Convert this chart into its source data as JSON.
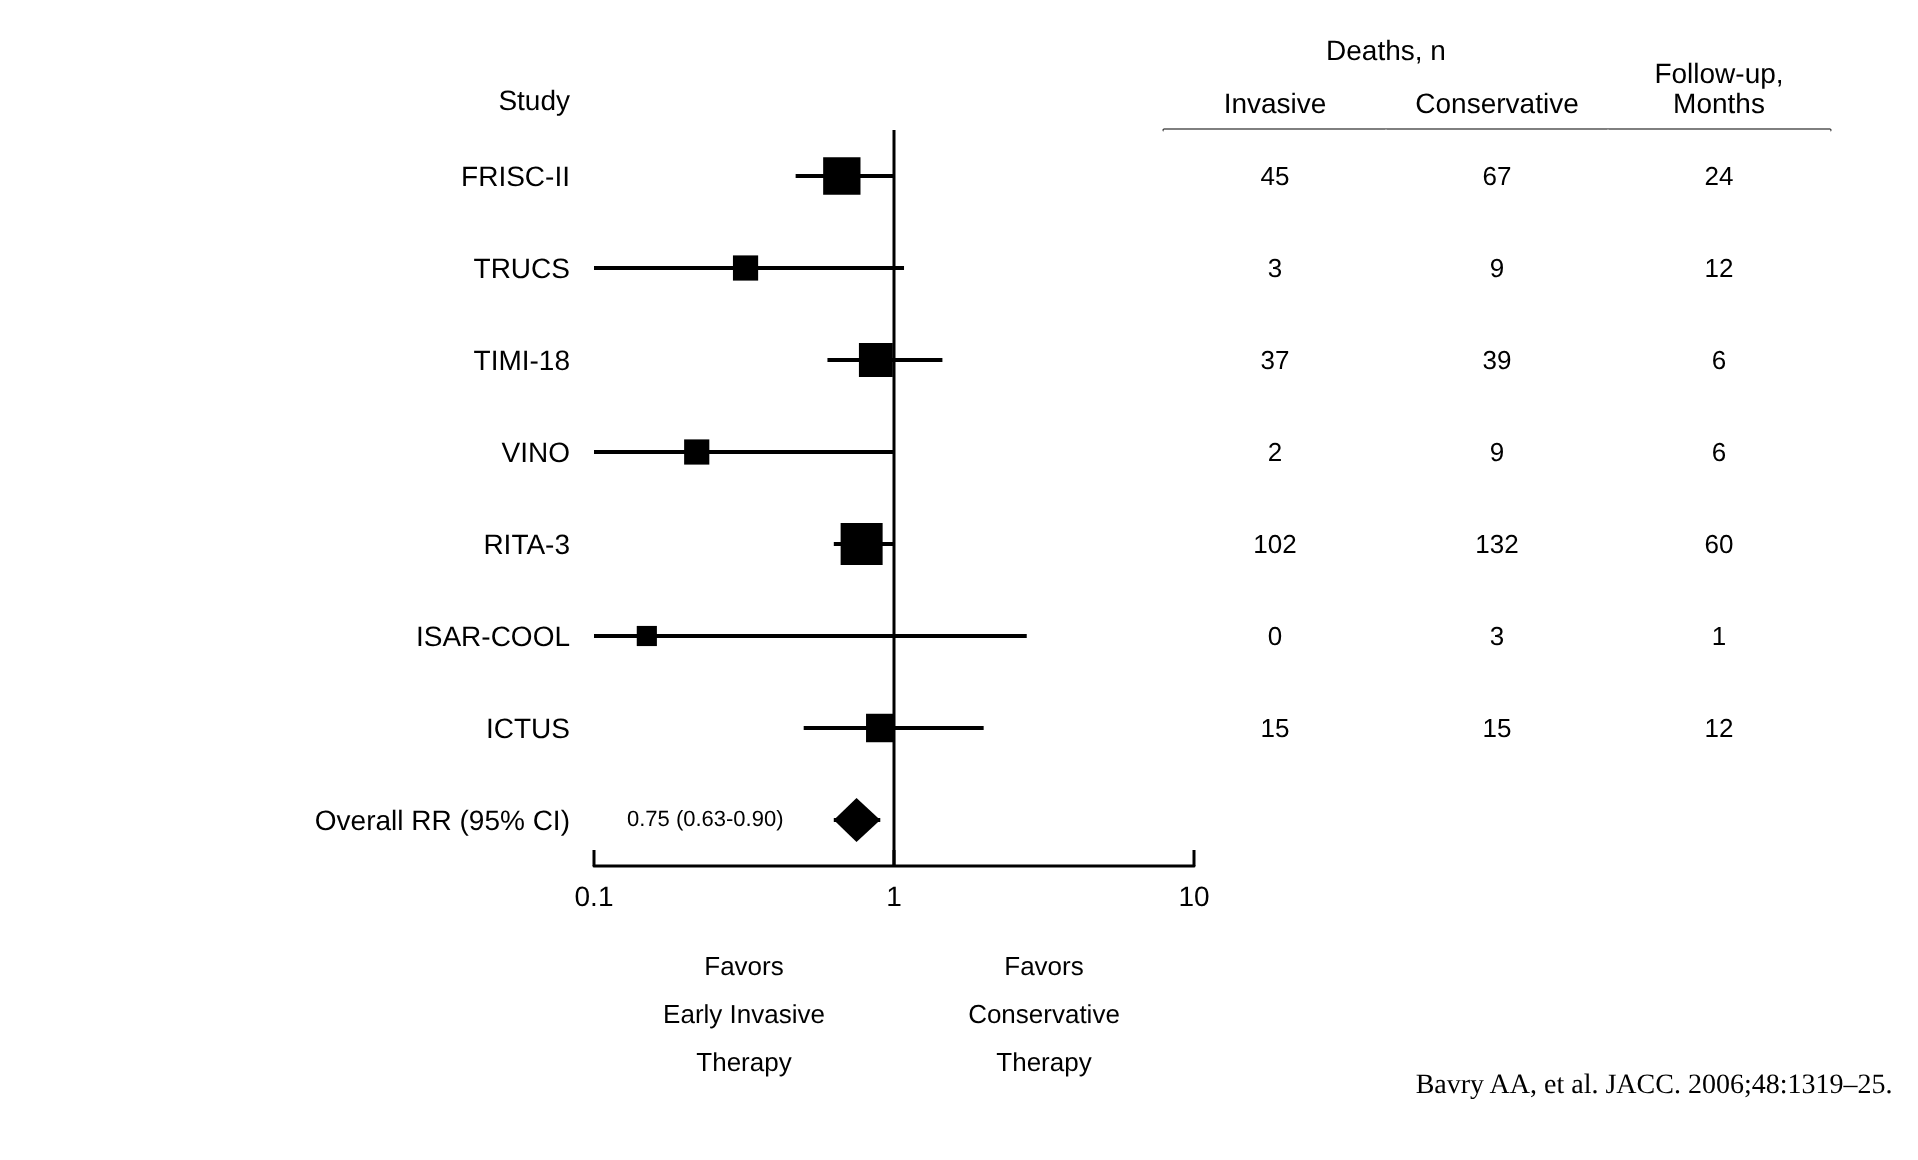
{
  "chart_data": [
    {
      "type": "scatter",
      "orientation": "horizontal",
      "ylabel": "Study",
      "categories": [
        "FRISC-II",
        "TRUCS",
        "TIMI-18",
        "VINO",
        "RITA-3",
        "ISAR-COOL",
        "ICTUS",
        "Overall RR (95% CI)"
      ],
      "series": [
        {
          "type": "bubble",
          "marker": "square",
          "color": "#000000",
          "values": [
            0.67,
            0.32,
            0.87,
            0.22,
            0.78,
            0.15,
            0.9,
            null
          ],
          "sizes": [
            0.79,
            0.36,
            0.65,
            0.36,
            1,
            0.23,
            0.46,
            null
          ],
          "errors": [
            [
              0.47,
              1.0
            ],
            [
              0.1,
              1.08
            ],
            [
              0.6,
              1.45
            ],
            [
              0.1,
              1.0
            ],
            [
              0.63,
              1.0
            ],
            [
              0.1,
              2.77
            ],
            [
              0.5,
              1.99
            ],
            null
          ]
        },
        {
          "type": "scatter",
          "marker": "diamond",
          "color": "#000000",
          "values": [
            null,
            null,
            null,
            null,
            null,
            null,
            null,
            0.75
          ],
          "errors": [
            null,
            null,
            null,
            null,
            null,
            null,
            null,
            [
              0.63,
              0.9
            ]
          ],
          "value_labels": [
            null,
            null,
            null,
            null,
            null,
            null,
            null,
            "0.75 (0.63-0.90)"
          ]
        }
      ],
      "xlim": [
        0.1,
        10
      ],
      "xticks": [
        0.1,
        1,
        10
      ],
      "log": "x",
      "grid": false,
      "ref_lines": [
        {
          "axis": "x",
          "value": 1
        }
      ],
      "annotations": [
        "Favors\nEarly Invasive\nTherapy",
        "Favors\nConservative\nTherapy",
        "Bavry AA, et al. JACC. 2006;48:1319–25."
      ]
    },
    {
      "type": "heatmap",
      "title": "Deaths, n",
      "data_labels": true,
      "categories": [
        "Invasive",
        "Conservative",
        "Follow-up,\nMonths"
      ],
      "y_categories": [
        null,
        null,
        null,
        null,
        null,
        null,
        null
      ],
      "cells": [
        [
          45,
          67,
          24
        ],
        [
          3,
          9,
          12
        ],
        [
          37,
          39,
          6
        ],
        [
          2,
          9,
          6
        ],
        [
          102,
          132,
          60
        ],
        [
          0,
          3,
          1
        ],
        [
          15,
          15,
          12
        ]
      ]
    }
  ]
}
